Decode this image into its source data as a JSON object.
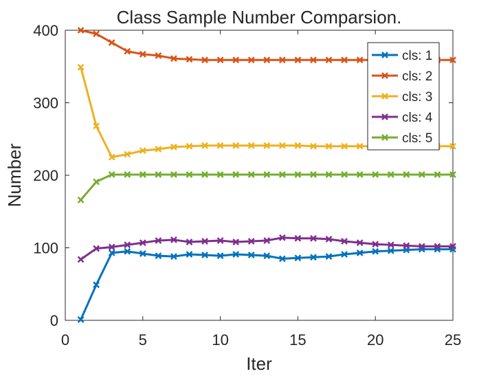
{
  "chart_data": {
    "type": "line",
    "title": "Class Sample Number Comparsion.",
    "xlabel": "Iter",
    "ylabel": "Number",
    "xlim": [
      0,
      25
    ],
    "ylim": [
      0,
      400
    ],
    "xticks": [
      0,
      5,
      10,
      15,
      20,
      25
    ],
    "yticks": [
      0,
      100,
      200,
      300,
      400
    ],
    "grid": false,
    "legend_position": "top-right",
    "marker": "x",
    "x": [
      1,
      2,
      3,
      4,
      5,
      6,
      7,
      8,
      9,
      10,
      11,
      12,
      13,
      14,
      15,
      16,
      17,
      18,
      19,
      20,
      21,
      22,
      23,
      24,
      25
    ],
    "series": [
      {
        "name": "cls: 1",
        "color": "#0072BD",
        "values": [
          1,
          49,
          93,
          95,
          92,
          89,
          88,
          91,
          90,
          89,
          91,
          90,
          89,
          85,
          86,
          87,
          88,
          91,
          93,
          95,
          96,
          97,
          98,
          98,
          98
        ]
      },
      {
        "name": "cls: 2",
        "color": "#D95319",
        "values": [
          400,
          395,
          383,
          371,
          367,
          365,
          361,
          360,
          359,
          359,
          359,
          359,
          359,
          359,
          359,
          359,
          359,
          359,
          359,
          359,
          359,
          359,
          359,
          359,
          359
        ]
      },
      {
        "name": "cls: 3",
        "color": "#EDB120",
        "values": [
          349,
          268,
          225,
          229,
          234,
          236,
          239,
          240,
          241,
          241,
          241,
          241,
          241,
          241,
          241,
          240,
          240,
          240,
          240,
          240,
          240,
          240,
          240,
          240,
          240
        ]
      },
      {
        "name": "cls: 4",
        "color": "#7E2F8E",
        "values": [
          84,
          99,
          101,
          104,
          107,
          110,
          111,
          108,
          109,
          110,
          108,
          109,
          110,
          114,
          113,
          113,
          112,
          109,
          107,
          105,
          104,
          103,
          102,
          102,
          102
        ]
      },
      {
        "name": "cls: 5",
        "color": "#77AC30",
        "values": [
          166,
          191,
          201,
          201,
          201,
          201,
          201,
          201,
          201,
          201,
          201,
          201,
          201,
          201,
          201,
          201,
          201,
          201,
          201,
          201,
          201,
          201,
          201,
          201,
          201
        ]
      }
    ]
  }
}
